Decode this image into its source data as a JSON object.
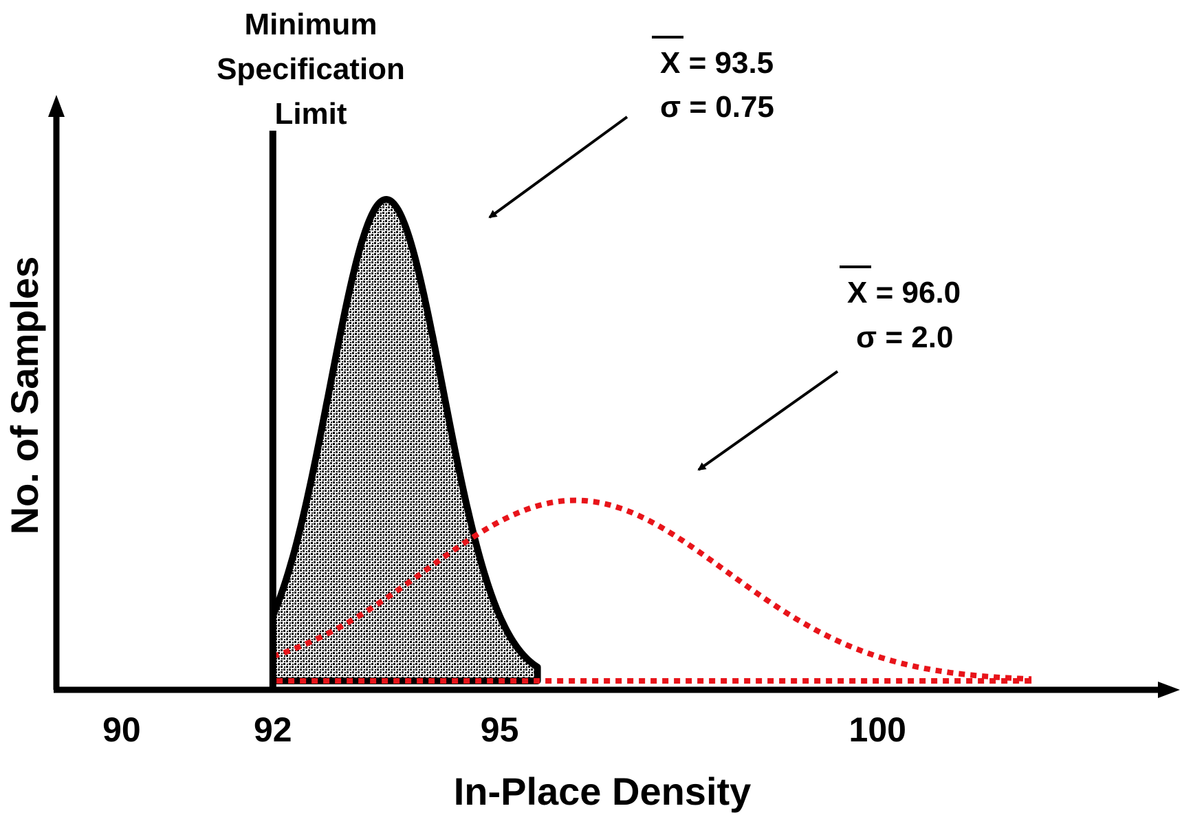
{
  "chart_data": {
    "type": "area",
    "title": "",
    "xlabel": "In-Place Density",
    "ylabel": "No. of Samples",
    "x_ticks": [
      90,
      92,
      95,
      100
    ],
    "xlim": [
      89.0,
      103.5
    ],
    "grid": false,
    "legend": "none",
    "reference_line": {
      "x": 92,
      "label_lines": [
        "Minimum",
        "Specification",
        "Limit"
      ]
    },
    "series": [
      {
        "mean": 93.5,
        "sigma": 0.75,
        "x_range": [
          92.0,
          95.5
        ],
        "style": "solid-black-stippled-fill",
        "color": "#000000",
        "mean_label_symbol": "X",
        "mean_label_rest": " = 93.5",
        "sigma_label": "σ = 0.75"
      },
      {
        "mean": 96.0,
        "sigma": 2.0,
        "x_range": [
          92.0,
          102.0
        ],
        "style": "dotted-red",
        "color": "#e8141a",
        "mean_label_symbol": "X",
        "mean_label_rest": " = 96.0",
        "sigma_label": "σ = 2.0"
      }
    ]
  }
}
